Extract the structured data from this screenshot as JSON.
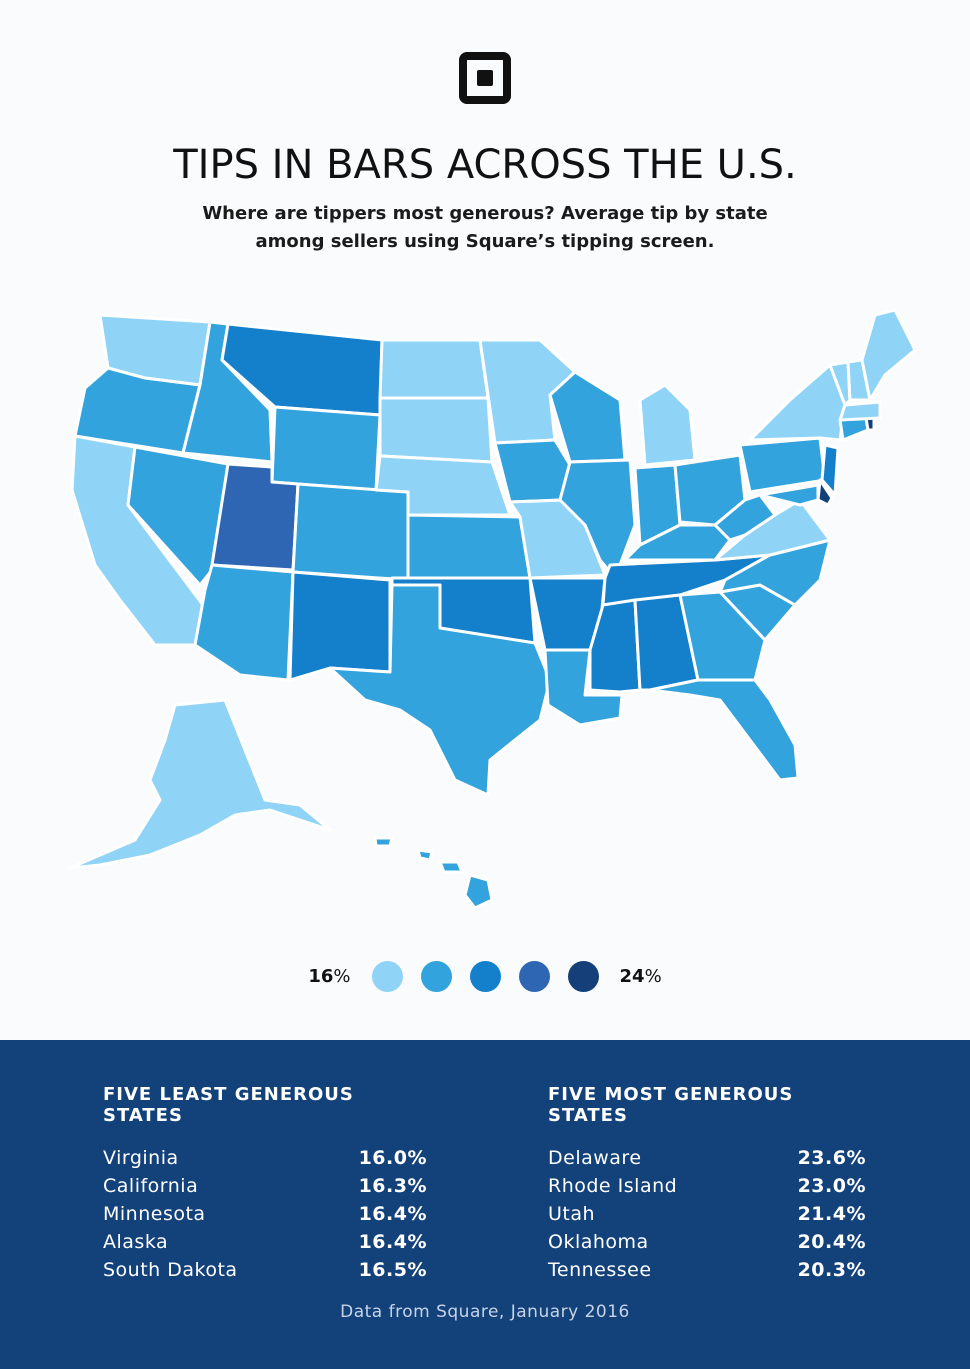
{
  "header": {
    "title": "TIPS IN BARS ACROSS THE U.S.",
    "subtitle_line1": "Where are tippers most generous? Average tip by state",
    "subtitle_line2": "among sellers using Square’s tipping screen."
  },
  "legend": {
    "low_label": "16",
    "low_unit": "%",
    "high_label": "24",
    "high_unit": "%",
    "colors": [
      "#8fd4f7",
      "#33a3dd",
      "#1480cc",
      "#2f66b3",
      "#143f78"
    ]
  },
  "map_data": {
    "color_scale": [
      "#8fd4f7",
      "#33a3dd",
      "#1480cc",
      "#2f66b3",
      "#143f78"
    ],
    "states_by_level": {
      "1": [
        "WA",
        "CA",
        "ND",
        "SD",
        "NE",
        "MN",
        "MO",
        "MI",
        "VA",
        "NY",
        "VT",
        "NH",
        "ME",
        "MA",
        "AK"
      ],
      "2": [
        "OR",
        "ID",
        "NV",
        "WY",
        "CO",
        "AZ",
        "KS",
        "TX",
        "IA",
        "WI",
        "IL",
        "IN",
        "OH",
        "KY",
        "WV",
        "PA",
        "NC",
        "SC",
        "GA",
        "FL",
        "LA",
        "MD",
        "HI",
        "CT"
      ],
      "3": [
        "MT",
        "NM",
        "OK",
        "AR",
        "MS",
        "AL",
        "TN",
        "NJ"
      ],
      "4": [
        "UT"
      ],
      "5": [
        "DE",
        "RI"
      ]
    }
  },
  "least": {
    "heading": "FIVE LEAST GENEROUS STATES",
    "rows": [
      {
        "state": "Virginia",
        "value": "16.0%"
      },
      {
        "state": "California",
        "value": "16.3%"
      },
      {
        "state": "Minnesota",
        "value": "16.4%"
      },
      {
        "state": "Alaska",
        "value": "16.4%"
      },
      {
        "state": "South Dakota",
        "value": "16.5%"
      }
    ]
  },
  "most": {
    "heading": "FIVE MOST GENEROUS STATES",
    "rows": [
      {
        "state": "Delaware",
        "value": "23.6%"
      },
      {
        "state": "Rhode Island",
        "value": "23.0%"
      },
      {
        "state": "Utah",
        "value": "21.4%"
      },
      {
        "state": "Oklahoma",
        "value": "20.4%"
      },
      {
        "state": "Tennessee",
        "value": "20.3%"
      }
    ]
  },
  "footer": {
    "source": "Data from Square, January 2016"
  }
}
